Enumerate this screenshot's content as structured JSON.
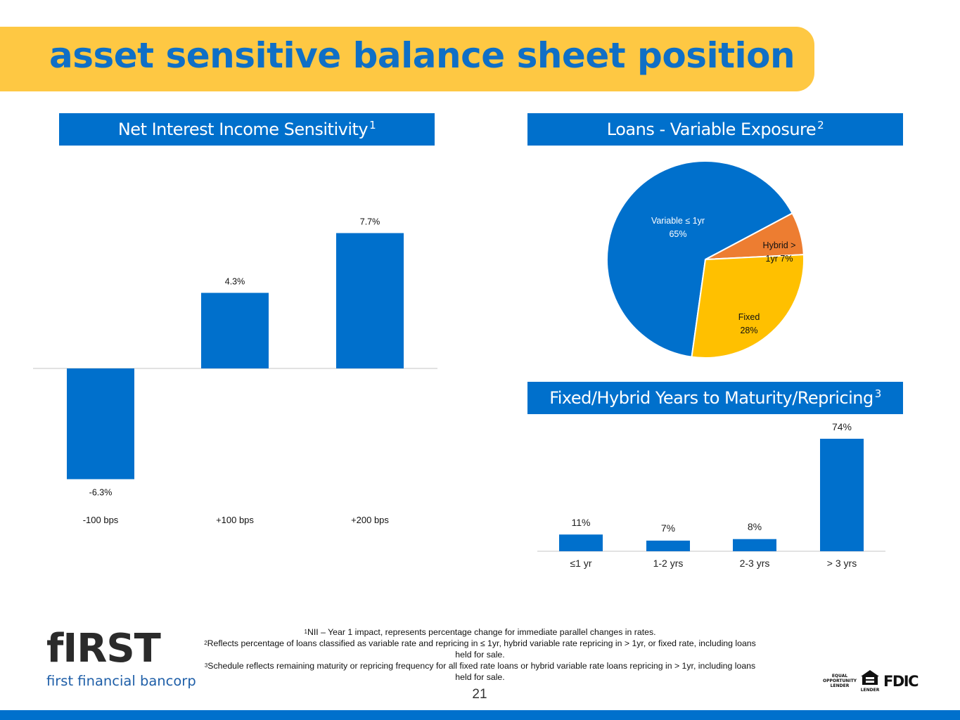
{
  "header": {
    "title": "asset sensitive balance sheet position"
  },
  "panels": {
    "nii_title": "Net Interest Income Sensitivity",
    "nii_sup": "1",
    "loans_title": "Loans - Variable Exposure",
    "loans_sup": "2",
    "maturity_title": "Fixed/Hybrid Years to Maturity/Repricing",
    "maturity_sup": "3"
  },
  "chart_data": [
    {
      "type": "bar",
      "title": "Net Interest Income Sensitivity",
      "categories": [
        "-100 bps",
        "+100 bps",
        "+200 bps"
      ],
      "values": [
        -6.3,
        4.3,
        7.7
      ],
      "labels": [
        "-6.3%",
        "4.3%",
        "7.7%"
      ],
      "ylim": [
        -6.3,
        7.7
      ],
      "color": "#0070cc"
    },
    {
      "type": "pie",
      "title": "Loans - Variable Exposure",
      "slices": [
        {
          "name": "Variable ≤ 1yr",
          "value": 65,
          "label_line1": "Variable ≤ 1yr",
          "label_line2": "65%",
          "color": "#0070cc",
          "text_color": "#ffffff"
        },
        {
          "name": "Hybrid > 1yr",
          "value": 7,
          "label_line1": "Hybrid >",
          "label_line2": "1yr 7%",
          "color": "#ed7d31",
          "text_color": "#111111"
        },
        {
          "name": "Fixed",
          "value": 28,
          "label_line1": "Fixed",
          "label_line2": "28%",
          "color": "#ffc000",
          "text_color": "#111111"
        }
      ]
    },
    {
      "type": "bar",
      "title": "Fixed/Hybrid Years to Maturity/Repricing",
      "categories": [
        "≤1 yr",
        "1-2 yrs",
        "2-3 yrs",
        "> 3 yrs"
      ],
      "values": [
        11,
        7,
        8,
        74
      ],
      "labels": [
        "11%",
        "7%",
        "8%",
        "74%"
      ],
      "ylim": [
        0,
        74
      ],
      "color": "#0070cc"
    }
  ],
  "footnotes": {
    "n1_sup": "1",
    "n1": "NII – Year 1 impact, represents percentage change for immediate parallel changes in rates.",
    "n2_sup": "2",
    "n2": "Reflects percentage of loans classified as variable rate and repricing in ≤ 1yr, hybrid variable rate repricing in > 1yr, or fixed rate, including loans held for sale.",
    "n3_sup": "3",
    "n3": "Schedule reflects remaining maturity or repricing frequency for all fixed rate loans or hybrid variable rate loans repricing in > 1yr, including loans held for sale."
  },
  "page_number": "21",
  "logo": {
    "main": "fIRST",
    "sub": "first financial bancorp"
  },
  "badges": {
    "eol_line1": "EQUAL",
    "eol_line2": "OPPORTUNITY",
    "eol_line3": "LENDER",
    "ehl": "LENDER",
    "fdic": "FDIC"
  }
}
